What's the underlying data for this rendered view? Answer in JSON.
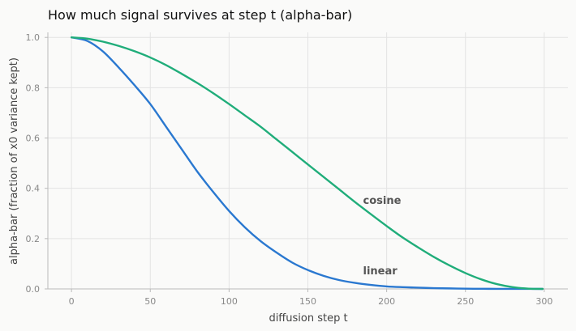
{
  "chart_data": {
    "type": "line",
    "title": "How much signal survives at step t  (alpha-bar)",
    "xlabel": "diffusion step t",
    "ylabel": "alpha-bar (fraction of x0 variance kept)",
    "xlim": [
      -15,
      315
    ],
    "ylim": [
      0,
      1.02
    ],
    "x_ticks": [
      0,
      50,
      100,
      150,
      200,
      250,
      300
    ],
    "y_ticks": [
      0.0,
      0.2,
      0.4,
      0.6,
      0.8,
      1.0
    ],
    "x_tick_labels": [
      "0",
      "50",
      "100",
      "150",
      "200",
      "250",
      "300"
    ],
    "y_tick_labels": [
      "0.0",
      "0.2",
      "0.4",
      "0.6",
      "0.8",
      "1.0"
    ],
    "grid": true,
    "legend": "none",
    "series": [
      {
        "color": "#2a78d0",
        "x": [
          0,
          10,
          20,
          30,
          40,
          50,
          60,
          70,
          80,
          90,
          100,
          110,
          120,
          130,
          140,
          150,
          160,
          170,
          180,
          190,
          200,
          210,
          220,
          230,
          240,
          250,
          260,
          270,
          280,
          290,
          299
        ],
        "y": [
          1.0,
          0.986,
          0.944,
          0.88,
          0.81,
          0.735,
          0.645,
          0.555,
          0.465,
          0.385,
          0.31,
          0.245,
          0.19,
          0.145,
          0.105,
          0.075,
          0.052,
          0.035,
          0.024,
          0.016,
          0.01,
          0.007,
          0.005,
          0.003,
          0.002,
          0.001,
          0.0005,
          0.0003,
          0.0002,
          0.0001,
          0.0
        ]
      },
      {
        "color": "#20ad7a",
        "x": [
          0,
          10,
          20,
          30,
          40,
          50,
          60,
          70,
          80,
          90,
          100,
          110,
          120,
          130,
          140,
          150,
          160,
          170,
          180,
          190,
          200,
          210,
          220,
          230,
          240,
          250,
          260,
          270,
          280,
          290,
          299
        ],
        "y": [
          1.0,
          0.995,
          0.983,
          0.966,
          0.945,
          0.92,
          0.89,
          0.855,
          0.818,
          0.778,
          0.735,
          0.69,
          0.645,
          0.595,
          0.545,
          0.495,
          0.445,
          0.395,
          0.345,
          0.297,
          0.25,
          0.205,
          0.165,
          0.127,
          0.093,
          0.063,
          0.038,
          0.019,
          0.007,
          0.001,
          0.0
        ]
      }
    ],
    "annotations": [
      {
        "text": "cosine",
        "x": 185,
        "y": 0.35
      },
      {
        "text": "linear",
        "x": 185,
        "y": 0.07
      }
    ]
  }
}
